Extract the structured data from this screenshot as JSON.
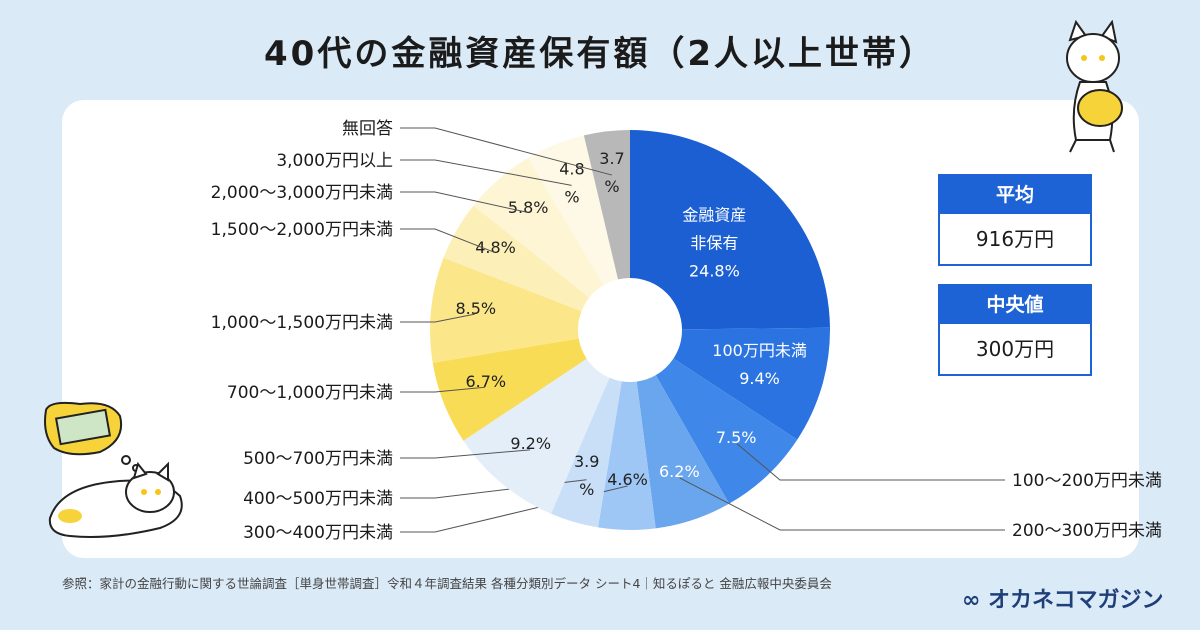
{
  "title": "40代の金融資産保有額（2人以上世帯）",
  "stats": {
    "mean_label": "平均",
    "mean_value": "916万円",
    "median_label": "中央値",
    "median_value": "300万円"
  },
  "source": "参照：家計の金融行動に関する世論調査［単身世帯調査］令和４年調査結果 各種分類別データ シート4｜知るぽると 金融広報中央委員会",
  "logo": "オカネコマガジン",
  "colors": {
    "background": "#dbeaf7",
    "accent": "#1e63d5",
    "panel": "#ffffff"
  },
  "chart_data": {
    "type": "pie",
    "title": "40代の金融資産保有額（2人以上世帯）",
    "donut": true,
    "unit": "%",
    "slices": [
      {
        "label": "金融資産非保有",
        "value": 24.8,
        "display": "金融資産\n非保有\n24.8%",
        "color": "#1c5fd3"
      },
      {
        "label": "100万円未満",
        "value": 9.4,
        "display": "100万円未満\n9.4%",
        "color": "#2a73e0"
      },
      {
        "label": "100〜200万円未満",
        "value": 7.5,
        "display": "7.5%",
        "color": "#3f88ea"
      },
      {
        "label": "200〜300万円未満",
        "value": 6.2,
        "display": "6.2%",
        "color": "#69a6ee"
      },
      {
        "label": "300〜400万円未満",
        "value": 4.6,
        "display": "4.6%",
        "color": "#9fc7f5"
      },
      {
        "label": "400〜500万円未満",
        "value": 3.9,
        "display": "3.9\n%",
        "color": "#c9def7"
      },
      {
        "label": "500〜700万円未満",
        "value": 9.2,
        "display": "9.2%",
        "color": "#e3eef9"
      },
      {
        "label": "700〜1,000万円未満",
        "value": 6.7,
        "display": "6.7%",
        "color": "#f9dc55"
      },
      {
        "label": "1,000〜1,500万円未満",
        "value": 8.5,
        "display": "8.5%",
        "color": "#fbe689"
      },
      {
        "label": "1,500〜2,000万円未満",
        "value": 4.8,
        "display": "4.8%",
        "color": "#fcefb8"
      },
      {
        "label": "2,000〜3,000万円未満",
        "value": 5.8,
        "display": "5.8%",
        "color": "#fdf5d4"
      },
      {
        "label": "3,000万円以上",
        "value": 4.8,
        "display": "4.8\n%",
        "color": "#fef9e6"
      },
      {
        "label": "無回答",
        "value": 3.7,
        "display": "3.7\n%",
        "color": "#b8b8b8"
      }
    ]
  }
}
